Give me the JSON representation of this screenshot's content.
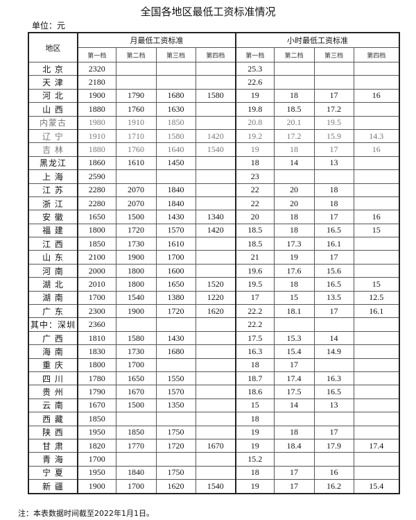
{
  "title": "全国各地区最低工资标准情况",
  "unit": "单位：元",
  "headers": {
    "region": "地区",
    "monthly": "月最低工资标准",
    "hourly": "小时最低工资标准",
    "tiers": [
      "第一档",
      "第二档",
      "第三档",
      "第四档"
    ]
  },
  "rows": [
    {
      "region": "北 京",
      "monthly": [
        "2320",
        "",
        "",
        ""
      ],
      "hourly": [
        "25.3",
        "",
        "",
        ""
      ]
    },
    {
      "region": "天 津",
      "monthly": [
        "2180",
        "",
        "",
        ""
      ],
      "hourly": [
        "22.6",
        "",
        "",
        ""
      ]
    },
    {
      "region": "河 北",
      "monthly": [
        "1900",
        "1790",
        "1680",
        "1580"
      ],
      "hourly": [
        "19",
        "18",
        "17",
        "16"
      ]
    },
    {
      "region": "山 西",
      "monthly": [
        "1880",
        "1760",
        "1630",
        ""
      ],
      "hourly": [
        "19.8",
        "18.5",
        "17.2",
        ""
      ]
    },
    {
      "region": "内蒙古",
      "monthly": [
        "1980",
        "1910",
        "1850",
        ""
      ],
      "hourly": [
        "20.8",
        "20.1",
        "19.5",
        ""
      ],
      "grey": true
    },
    {
      "region": "辽 宁",
      "monthly": [
        "1910",
        "1710",
        "1580",
        "1420"
      ],
      "hourly": [
        "19.2",
        "17.2",
        "15.9",
        "14.3"
      ],
      "grey": true
    },
    {
      "region": "吉 林",
      "monthly": [
        "1880",
        "1760",
        "1640",
        "1540"
      ],
      "hourly": [
        "19",
        "18",
        "17",
        "16"
      ],
      "grey": true
    },
    {
      "region": "黑龙江",
      "monthly": [
        "1860",
        "1610",
        "1450",
        ""
      ],
      "hourly": [
        "18",
        "14",
        "13",
        ""
      ]
    },
    {
      "region": "上 海",
      "monthly": [
        "2590",
        "",
        "",
        ""
      ],
      "hourly": [
        "23",
        "",
        "",
        ""
      ]
    },
    {
      "region": "江 苏",
      "monthly": [
        "2280",
        "2070",
        "1840",
        ""
      ],
      "hourly": [
        "22",
        "20",
        "18",
        ""
      ]
    },
    {
      "region": "浙 江",
      "monthly": [
        "2280",
        "2070",
        "1840",
        ""
      ],
      "hourly": [
        "22",
        "20",
        "18",
        ""
      ]
    },
    {
      "region": "安 徽",
      "monthly": [
        "1650",
        "1500",
        "1430",
        "1340"
      ],
      "hourly": [
        "20",
        "18",
        "17",
        "16"
      ]
    },
    {
      "region": "福 建",
      "monthly": [
        "1800",
        "1720",
        "1570",
        "1420"
      ],
      "hourly": [
        "18.5",
        "18",
        "16.5",
        "15"
      ]
    },
    {
      "region": "江 西",
      "monthly": [
        "1850",
        "1730",
        "1610",
        ""
      ],
      "hourly": [
        "18.5",
        "17.3",
        "16.1",
        ""
      ]
    },
    {
      "region": "山 东",
      "monthly": [
        "2100",
        "1900",
        "1700",
        ""
      ],
      "hourly": [
        "21",
        "19",
        "17",
        ""
      ]
    },
    {
      "region": "河 南",
      "monthly": [
        "2000",
        "1800",
        "1600",
        ""
      ],
      "hourly": [
        "19.6",
        "17.6",
        "15.6",
        ""
      ]
    },
    {
      "region": "湖 北",
      "monthly": [
        "2010",
        "1800",
        "1650",
        "1520"
      ],
      "hourly": [
        "19.5",
        "18",
        "16.5",
        "15"
      ]
    },
    {
      "region": "湖 南",
      "monthly": [
        "1700",
        "1540",
        "1380",
        "1220"
      ],
      "hourly": [
        "17",
        "15",
        "13.5",
        "12.5"
      ]
    },
    {
      "region": "广 东",
      "monthly": [
        "2300",
        "1900",
        "1720",
        "1620"
      ],
      "hourly": [
        "22.2",
        "18.1",
        "17",
        "16.1"
      ]
    },
    {
      "region": "其中：深圳",
      "monthly": [
        "2360",
        "",
        "",
        ""
      ],
      "hourly": [
        "22.2",
        "",
        "",
        ""
      ]
    },
    {
      "region": "广 西",
      "monthly": [
        "1810",
        "1580",
        "1430",
        ""
      ],
      "hourly": [
        "17.5",
        "15.3",
        "14",
        ""
      ]
    },
    {
      "region": "海 南",
      "monthly": [
        "1830",
        "1730",
        "1680",
        ""
      ],
      "hourly": [
        "16.3",
        "15.4",
        "14.9",
        ""
      ]
    },
    {
      "region": "重 庆",
      "monthly": [
        "1800",
        "1700",
        "",
        ""
      ],
      "hourly": [
        "18",
        "17",
        "",
        ""
      ]
    },
    {
      "region": "四 川",
      "monthly": [
        "1780",
        "1650",
        "1550",
        ""
      ],
      "hourly": [
        "18.7",
        "17.4",
        "16.3",
        ""
      ]
    },
    {
      "region": "贵 州",
      "monthly": [
        "1790",
        "1670",
        "1570",
        ""
      ],
      "hourly": [
        "18.6",
        "17.5",
        "16.5",
        ""
      ]
    },
    {
      "region": "云 南",
      "monthly": [
        "1670",
        "1500",
        "1350",
        ""
      ],
      "hourly": [
        "15",
        "14",
        "13",
        ""
      ]
    },
    {
      "region": "西 藏",
      "monthly": [
        "1850",
        "",
        "",
        ""
      ],
      "hourly": [
        "18",
        "",
        "",
        ""
      ]
    },
    {
      "region": "陕 西",
      "monthly": [
        "1950",
        "1850",
        "1750",
        ""
      ],
      "hourly": [
        "19",
        "18",
        "17",
        ""
      ]
    },
    {
      "region": "甘 肃",
      "monthly": [
        "1820",
        "1770",
        "1720",
        "1670"
      ],
      "hourly": [
        "19",
        "18.4",
        "17.9",
        "17.4"
      ]
    },
    {
      "region": "青 海",
      "monthly": [
        "1700",
        "",
        "",
        ""
      ],
      "hourly": [
        "15.2",
        "",
        "",
        ""
      ]
    },
    {
      "region": "宁 夏",
      "monthly": [
        "1950",
        "1840",
        "1750",
        ""
      ],
      "hourly": [
        "18",
        "17",
        "16",
        ""
      ]
    },
    {
      "region": "新 疆",
      "monthly": [
        "1900",
        "1700",
        "1620",
        "1540"
      ],
      "hourly": [
        "19",
        "17",
        "16.2",
        "15.4"
      ]
    }
  ],
  "note": "注：本表数据时间截至2022年1月1日。"
}
